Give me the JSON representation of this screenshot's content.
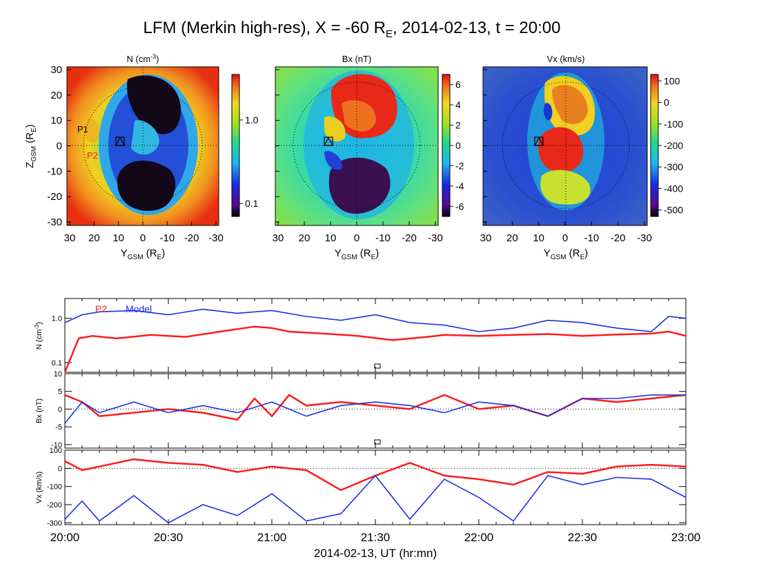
{
  "title": "LFM (Merkin high-res), X = -60 R",
  "title_sub": "E",
  "title_rest": ", 2014-02-13, t = 20:00",
  "colors": {
    "p2": "#ff1a1a",
    "model": "#1a2ee6",
    "p1_label": "#000000"
  },
  "maps": [
    {
      "id": "n",
      "title": "N (cm",
      "title_sup": "-3",
      "title_end": ")",
      "colorbar_ticks": [
        "1.0",
        "0.1"
      ],
      "colorbar_tick_values": [
        1.0,
        0.1
      ],
      "scale": "log",
      "range": [
        0.07,
        3.5
      ]
    },
    {
      "id": "bx",
      "title": "Bx (nT)",
      "colorbar_ticks": [
        "6",
        "4",
        "2",
        "0",
        "-2",
        "-4",
        "-6"
      ],
      "colorbar_tick_values": [
        6,
        4,
        2,
        0,
        -2,
        -4,
        -6
      ],
      "scale": "linear",
      "range": [
        -7,
        7
      ]
    },
    {
      "id": "vx",
      "title": "Vx (km/s)",
      "colorbar_ticks": [
        "100",
        "0",
        "-100",
        "-200",
        "-300",
        "-400",
        "-500"
      ],
      "colorbar_tick_values": [
        100,
        0,
        -100,
        -200,
        -300,
        -400,
        -500
      ],
      "scale": "linear",
      "range": [
        -530,
        130
      ]
    }
  ],
  "map_axes": {
    "xlabel": "Y",
    "xlabel_sub": "GSM",
    "xlabel_unit": " (R",
    "xlabel_unit_sub": "E",
    "xlabel_end": ")",
    "ylabel": "Z",
    "ylabel_sub": "GSM",
    "ylabel_unit": " (R",
    "ylabel_unit_sub": "E",
    "ylabel_end": ")",
    "xticks": [
      "30",
      "20",
      "10",
      "0",
      "-10",
      "-20",
      "-30"
    ],
    "yticks": [
      "30",
      "20",
      "10",
      "0",
      "-10",
      "-20",
      "-30"
    ]
  },
  "markers": {
    "p1": "P1",
    "p2": "P2"
  },
  "chart_data": {
    "type": "line",
    "x_range_minutes": [
      0,
      180
    ],
    "xtick_labels": [
      "20:00",
      "20:30",
      "21:00",
      "21:30",
      "22:00",
      "22:30",
      "23:00"
    ],
    "xlabel": "2014-02-13, UT (hr:mn)",
    "legend": [
      "P2",
      "Model"
    ],
    "panels": [
      {
        "ylabel": "N (cm",
        "ylabel_sup": "-3",
        "ylabel_end": ")",
        "scale": "log",
        "ylim": [
          0.06,
          2.8
        ],
        "ytick_labels": [
          "1.0",
          "0.1"
        ],
        "ytick_values": [
          1.0,
          0.1
        ],
        "series": [
          {
            "name": "P2",
            "x": [
              0,
              4,
              8,
              15,
              25,
              35,
              45,
              55,
              60,
              65,
              75,
              85,
              95,
              105,
              110,
              120,
              130,
              140,
              150,
              160,
              170,
              175,
              180
            ],
            "values": [
              0.06,
              0.35,
              0.4,
              0.35,
              0.42,
              0.38,
              0.5,
              0.65,
              0.6,
              0.5,
              0.45,
              0.4,
              0.32,
              0.38,
              0.42,
              0.4,
              0.42,
              0.44,
              0.4,
              0.43,
              0.45,
              0.5,
              0.4
            ]
          },
          {
            "name": "Model",
            "x": [
              0,
              5,
              10,
              20,
              30,
              40,
              50,
              60,
              70,
              80,
              90,
              100,
              110,
              120,
              130,
              140,
              150,
              160,
              170,
              175,
              180
            ],
            "values": [
              0.8,
              1.2,
              1.4,
              1.5,
              1.2,
              1.6,
              1.3,
              1.5,
              1.1,
              0.9,
              1.2,
              0.8,
              0.7,
              0.5,
              0.6,
              0.9,
              0.8,
              0.6,
              0.5,
              1.1,
              1.0
            ]
          }
        ]
      },
      {
        "ylabel": "Bx (nT)",
        "scale": "linear",
        "ylim": [
          -11,
          10
        ],
        "ytick_labels": [
          "10",
          "5",
          "0",
          "-5",
          "-10"
        ],
        "ytick_values": [
          10,
          5,
          0,
          -5,
          -10
        ],
        "series": [
          {
            "name": "P2",
            "x": [
              0,
              5,
              10,
              20,
              30,
              40,
              50,
              55,
              60,
              65,
              70,
              80,
              90,
              100,
              110,
              120,
              130,
              140,
              150,
              160,
              170,
              180
            ],
            "values": [
              4,
              2,
              -2,
              -1,
              0,
              -1,
              -3,
              3,
              -2,
              4,
              1,
              2,
              1,
              0,
              4,
              0,
              1,
              -2,
              3,
              2,
              3,
              4
            ]
          },
          {
            "name": "Model",
            "x": [
              0,
              5,
              10,
              20,
              30,
              40,
              50,
              60,
              70,
              80,
              90,
              100,
              110,
              120,
              130,
              140,
              150,
              160,
              170,
              180
            ],
            "values": [
              -4,
              2,
              -1,
              2,
              -1,
              1,
              -1,
              2,
              -2,
              1,
              2,
              1,
              -1,
              2,
              1,
              -2,
              3,
              3,
              4,
              4
            ]
          }
        ]
      },
      {
        "ylabel": "Vx (km/s)",
        "scale": "linear",
        "ylim": [
          -310,
          100
        ],
        "ytick_labels": [
          "100",
          "0",
          "-100",
          "-200",
          "-300"
        ],
        "ytick_values": [
          100,
          0,
          -100,
          -200,
          -300
        ],
        "series": [
          {
            "name": "P2",
            "x": [
              0,
              5,
              10,
              20,
              30,
              40,
              50,
              60,
              70,
              80,
              90,
              100,
              110,
              120,
              130,
              140,
              150,
              160,
              170,
              180
            ],
            "values": [
              40,
              -10,
              10,
              50,
              30,
              20,
              -20,
              10,
              -10,
              -120,
              -40,
              30,
              -40,
              -60,
              -90,
              -20,
              -30,
              10,
              20,
              10
            ]
          },
          {
            "name": "Model",
            "x": [
              0,
              5,
              10,
              20,
              30,
              40,
              50,
              60,
              70,
              80,
              90,
              100,
              110,
              120,
              130,
              140,
              150,
              160,
              170,
              180
            ],
            "values": [
              -280,
              -180,
              -290,
              -150,
              -300,
              -200,
              -260,
              -140,
              -290,
              -250,
              -40,
              -280,
              -60,
              -160,
              -290,
              -40,
              -90,
              -50,
              -60,
              -160
            ]
          }
        ]
      }
    ]
  }
}
